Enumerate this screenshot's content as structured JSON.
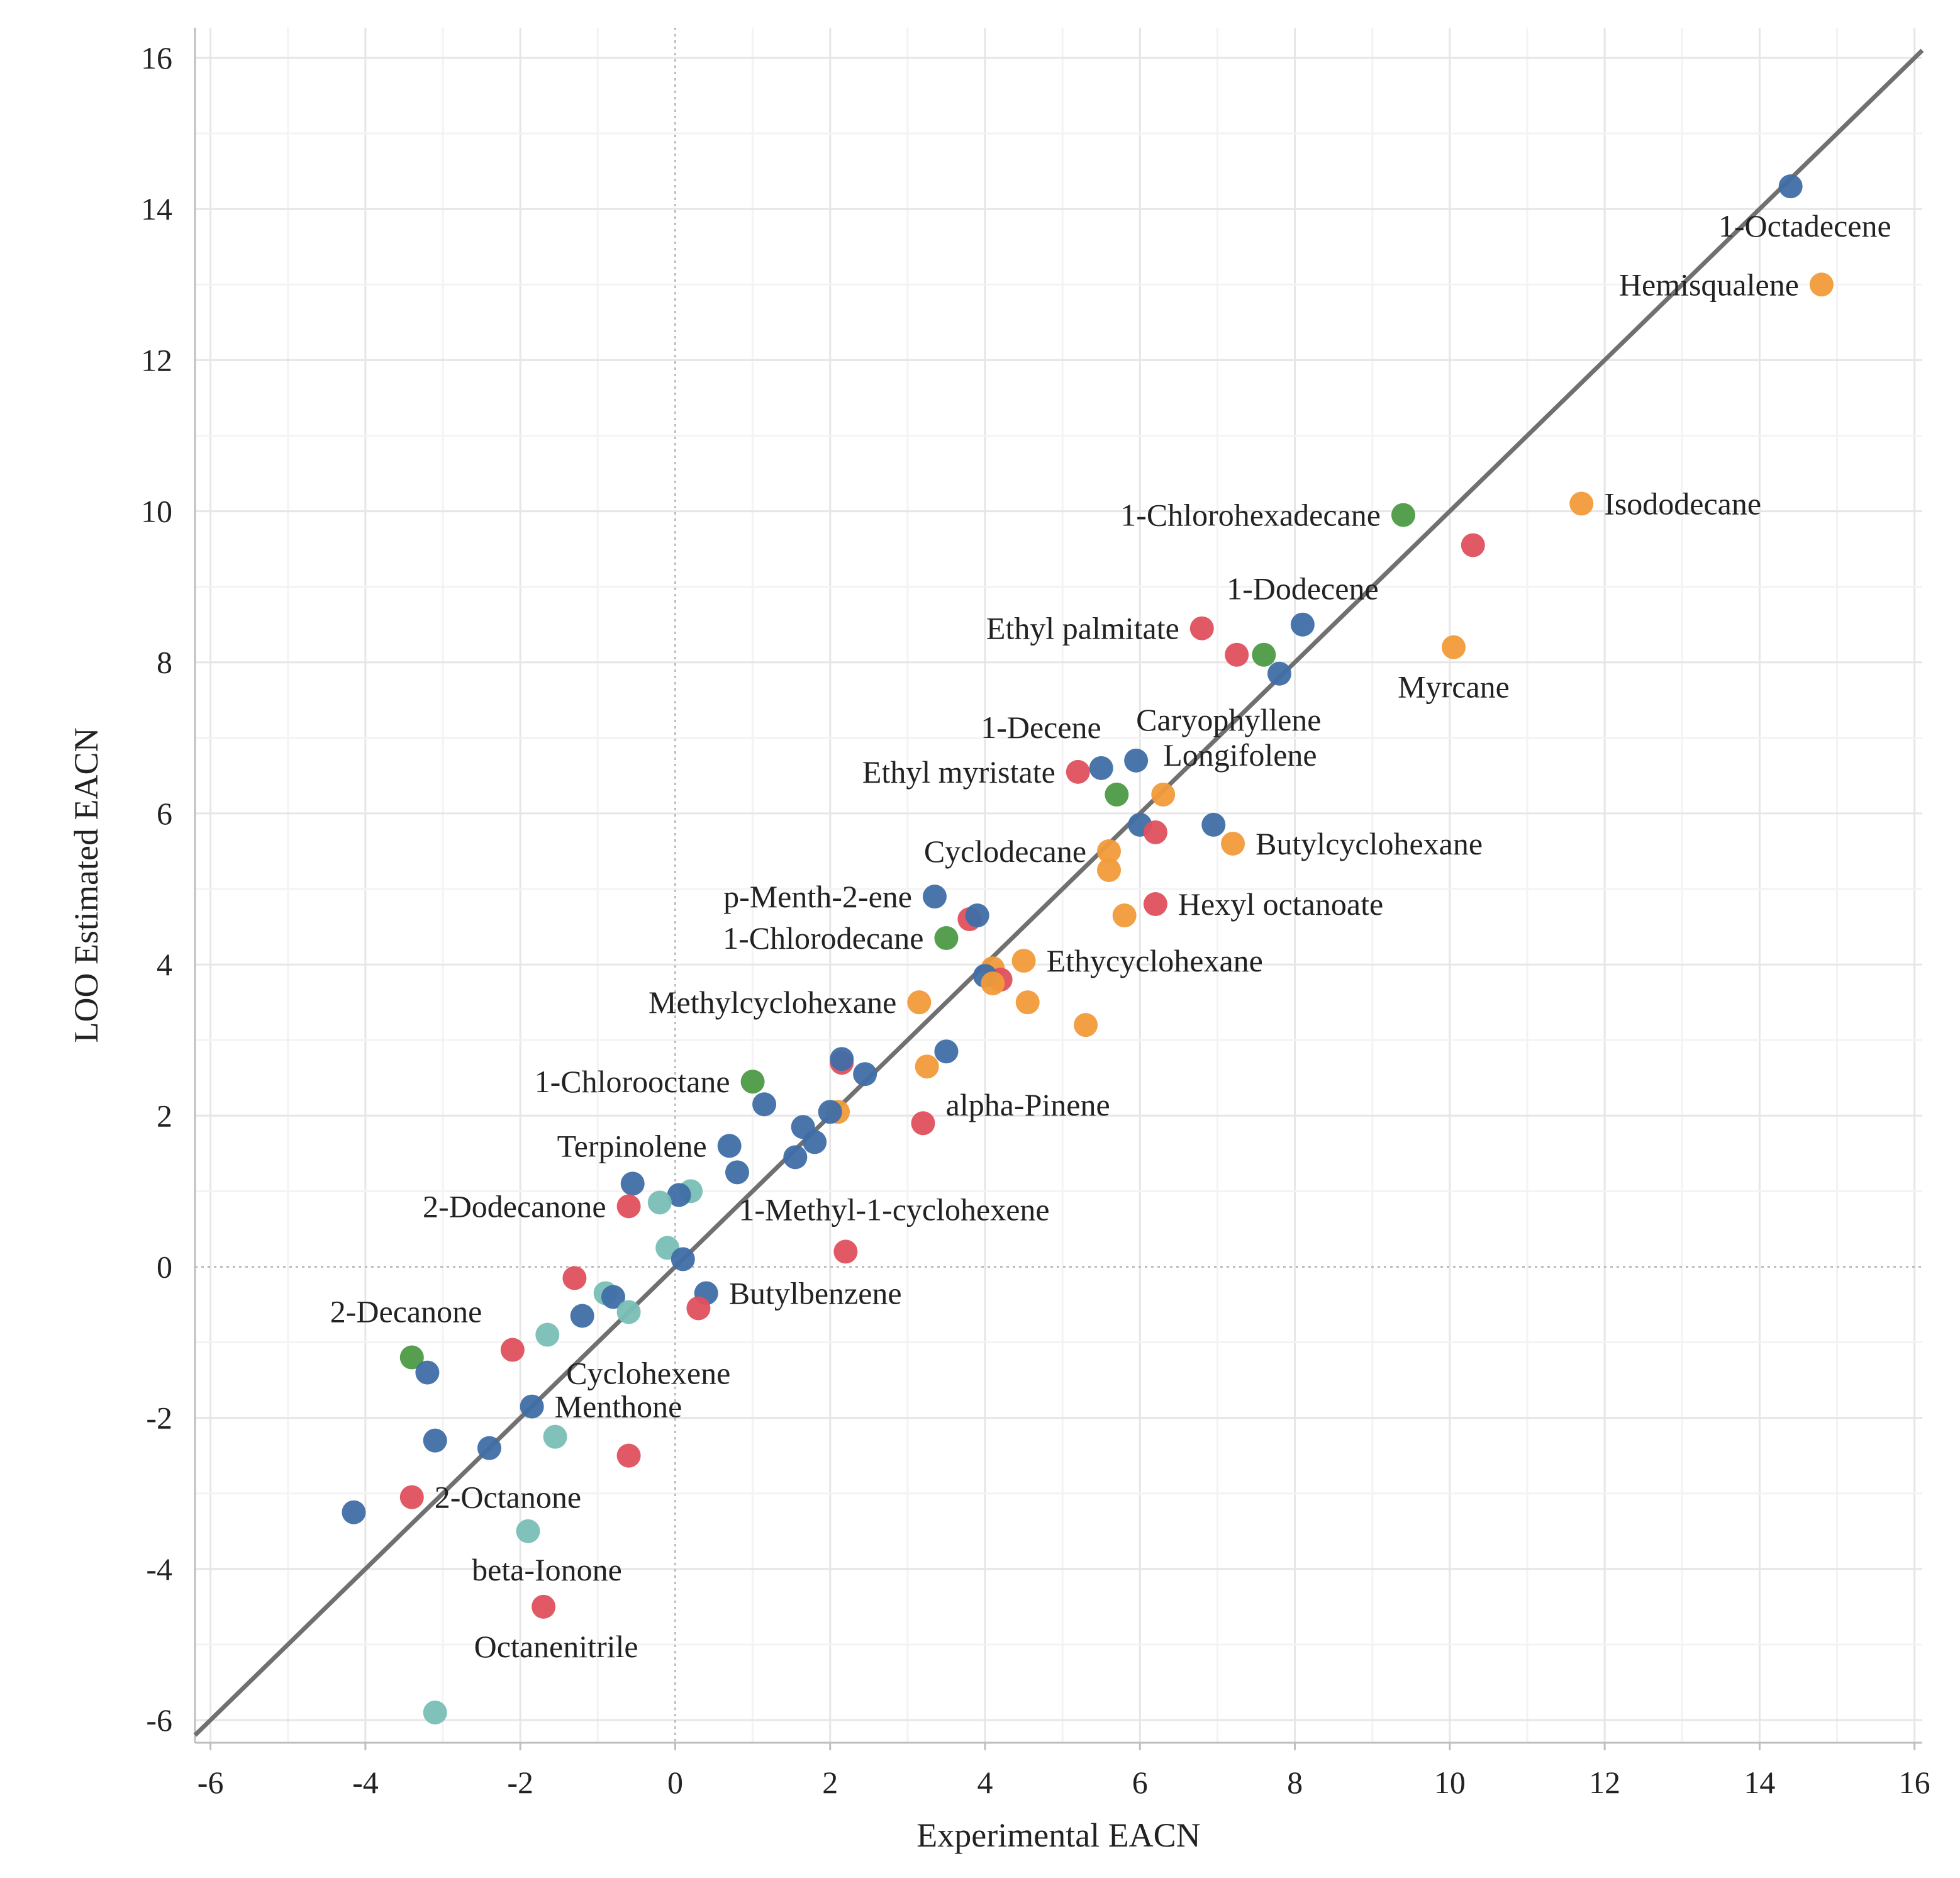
{
  "chart_data": {
    "type": "scatter",
    "title": "",
    "xlabel": "Experimental EACN",
    "ylabel": "LOO Estimated EACN",
    "xlim": [
      -6.2,
      16.1
    ],
    "ylim": [
      -6.3,
      16.4
    ],
    "xticks": [
      -6,
      -4,
      -2,
      0,
      2,
      4,
      6,
      8,
      10,
      12,
      14,
      16
    ],
    "yticks": [
      -6,
      -4,
      -2,
      0,
      2,
      4,
      6,
      8,
      10,
      12,
      14,
      16
    ],
    "grid": true,
    "reference_line": {
      "name": "y = x",
      "color": "#707070",
      "from": [
        -6.2,
        -6.2
      ],
      "to": [
        16.1,
        16.1
      ]
    },
    "zero_lines": true,
    "colors": {
      "blue": "#3f6ea6",
      "red": "#e0505e",
      "orange": "#f29a3a",
      "green": "#4d9a46",
      "teal": "#79bfb5"
    },
    "points": [
      {
        "x": 14.4,
        "y": 14.3,
        "c": "blue",
        "label": "1-Octadecene",
        "anchor": "below-left"
      },
      {
        "x": 14.8,
        "y": 13.0,
        "c": "orange",
        "label": "Hemisqualene",
        "anchor": "left"
      },
      {
        "x": 11.7,
        "y": 10.1,
        "c": "orange",
        "label": "Isododecane",
        "anchor": "right"
      },
      {
        "x": 9.4,
        "y": 9.95,
        "c": "green",
        "label": "1-Chlorohexadecane",
        "anchor": "left"
      },
      {
        "x": 10.3,
        "y": 9.55,
        "c": "red"
      },
      {
        "x": 8.1,
        "y": 8.5,
        "c": "blue",
        "label": "1-Dodecene",
        "anchor": "above"
      },
      {
        "x": 6.8,
        "y": 8.45,
        "c": "red",
        "label": "Ethyl palmitate",
        "anchor": "left"
      },
      {
        "x": 10.05,
        "y": 8.2,
        "c": "orange",
        "label": "Myrcane",
        "anchor": "below"
      },
      {
        "x": 7.25,
        "y": 8.1,
        "c": "red"
      },
      {
        "x": 7.6,
        "y": 8.1,
        "c": "green"
      },
      {
        "x": 7.8,
        "y": 7.85,
        "c": "blue"
      },
      {
        "x": 5.95,
        "y": 6.7,
        "c": "blue",
        "label": "Caryophyllene",
        "anchor": "above-right"
      },
      {
        "x": 5.5,
        "y": 6.6,
        "c": "blue",
        "label": "1-Decene",
        "anchor": "above-left"
      },
      {
        "x": 5.2,
        "y": 6.55,
        "c": "red",
        "label": "Ethyl myristate",
        "anchor": "left"
      },
      {
        "x": 5.7,
        "y": 6.25,
        "c": "green"
      },
      {
        "x": 6.3,
        "y": 6.25,
        "c": "orange",
        "label": "Longifolene",
        "anchor": "above-right"
      },
      {
        "x": 6.0,
        "y": 5.85,
        "c": "blue"
      },
      {
        "x": 6.95,
        "y": 5.85,
        "c": "blue"
      },
      {
        "x": 6.2,
        "y": 5.75,
        "c": "red"
      },
      {
        "x": 7.2,
        "y": 5.6,
        "c": "orange",
        "label": "Butylcyclohexane",
        "anchor": "right"
      },
      {
        "x": 5.6,
        "y": 5.5,
        "c": "orange",
        "label": "Cyclodecane",
        "anchor": "left"
      },
      {
        "x": 5.6,
        "y": 5.25,
        "c": "orange"
      },
      {
        "x": 3.35,
        "y": 4.9,
        "c": "blue",
        "label": "p-Menth-2-ene",
        "anchor": "left"
      },
      {
        "x": 6.2,
        "y": 4.8,
        "c": "red",
        "label": "Hexyl octanoate",
        "anchor": "right"
      },
      {
        "x": 5.8,
        "y": 4.65,
        "c": "orange"
      },
      {
        "x": 3.8,
        "y": 4.6,
        "c": "red"
      },
      {
        "x": 3.9,
        "y": 4.65,
        "c": "blue"
      },
      {
        "x": 3.5,
        "y": 4.35,
        "c": "green",
        "label": "1-Chlorodecane",
        "anchor": "left"
      },
      {
        "x": 4.5,
        "y": 4.05,
        "c": "orange",
        "label": "Ethycyclohexane",
        "anchor": "right"
      },
      {
        "x": 4.1,
        "y": 3.95,
        "c": "orange"
      },
      {
        "x": 4.2,
        "y": 3.8,
        "c": "red"
      },
      {
        "x": 4.0,
        "y": 3.85,
        "c": "blue"
      },
      {
        "x": 4.1,
        "y": 3.75,
        "c": "orange"
      },
      {
        "x": 4.55,
        "y": 3.5,
        "c": "orange"
      },
      {
        "x": 3.15,
        "y": 3.5,
        "c": "orange",
        "label": "Methylcyclohexane",
        "anchor": "left"
      },
      {
        "x": 5.3,
        "y": 3.2,
        "c": "orange"
      },
      {
        "x": 3.5,
        "y": 2.85,
        "c": "blue"
      },
      {
        "x": 2.15,
        "y": 2.7,
        "c": "red"
      },
      {
        "x": 2.15,
        "y": 2.75,
        "c": "blue"
      },
      {
        "x": 2.45,
        "y": 2.55,
        "c": "blue"
      },
      {
        "x": 3.25,
        "y": 2.65,
        "c": "orange",
        "label": "alpha-Pinene",
        "anchor": "below-right"
      },
      {
        "x": 1.0,
        "y": 2.45,
        "c": "green",
        "label": "1-Chlorooctane",
        "anchor": "left"
      },
      {
        "x": 1.15,
        "y": 2.15,
        "c": "blue"
      },
      {
        "x": 2.1,
        "y": 2.05,
        "c": "orange"
      },
      {
        "x": 2.0,
        "y": 2.05,
        "c": "blue"
      },
      {
        "x": 1.65,
        "y": 1.85,
        "c": "blue"
      },
      {
        "x": 3.2,
        "y": 1.9,
        "c": "red"
      },
      {
        "x": 1.8,
        "y": 1.65,
        "c": "blue"
      },
      {
        "x": 0.7,
        "y": 1.6,
        "c": "blue",
        "label": "Terpinolene",
        "anchor": "left"
      },
      {
        "x": 1.55,
        "y": 1.45,
        "c": "blue"
      },
      {
        "x": 0.8,
        "y": 1.25,
        "c": "blue"
      },
      {
        "x": -0.55,
        "y": 1.1,
        "c": "blue"
      },
      {
        "x": 0.2,
        "y": 1.0,
        "c": "teal"
      },
      {
        "x": 0.05,
        "y": 0.95,
        "c": "blue"
      },
      {
        "x": -0.2,
        "y": 0.85,
        "c": "teal"
      },
      {
        "x": -0.6,
        "y": 0.8,
        "c": "red",
        "label": "2-Dodecanone",
        "anchor": "left"
      },
      {
        "x": 2.2,
        "y": 0.2,
        "c": "red",
        "label": "1-Methyl-1-cyclohexene",
        "anchor": "above-right"
      },
      {
        "x": -0.1,
        "y": 0.25,
        "c": "teal"
      },
      {
        "x": 0.1,
        "y": 0.1,
        "c": "blue"
      },
      {
        "x": -1.3,
        "y": -0.15,
        "c": "red"
      },
      {
        "x": -0.9,
        "y": -0.35,
        "c": "teal"
      },
      {
        "x": -0.8,
        "y": -0.4,
        "c": "blue"
      },
      {
        "x": 0.4,
        "y": -0.35,
        "c": "blue",
        "label": "Butylbenzene",
        "anchor": "right"
      },
      {
        "x": 0.3,
        "y": -0.55,
        "c": "red"
      },
      {
        "x": -0.6,
        "y": -0.6,
        "c": "teal"
      },
      {
        "x": -1.2,
        "y": -0.65,
        "c": "blue"
      },
      {
        "x": -1.65,
        "y": -0.9,
        "c": "teal",
        "label": "Cyclohexene",
        "anchor": "below-right"
      },
      {
        "x": -2.1,
        "y": -1.1,
        "c": "red"
      },
      {
        "x": -3.4,
        "y": -1.2,
        "c": "green",
        "label": "2-Decanone",
        "anchor": "above-right"
      },
      {
        "x": -3.2,
        "y": -1.4,
        "c": "blue"
      },
      {
        "x": -1.85,
        "y": -1.85,
        "c": "blue",
        "label": "Menthone",
        "anchor": "right"
      },
      {
        "x": -1.55,
        "y": -2.25,
        "c": "teal"
      },
      {
        "x": -3.1,
        "y": -2.3,
        "c": "blue"
      },
      {
        "x": -2.4,
        "y": -2.4,
        "c": "blue"
      },
      {
        "x": -0.6,
        "y": -2.5,
        "c": "red"
      },
      {
        "x": -3.4,
        "y": -3.05,
        "c": "red",
        "label": "2-Octanone",
        "anchor": "right"
      },
      {
        "x": -4.15,
        "y": -3.25,
        "c": "blue"
      },
      {
        "x": -1.9,
        "y": -3.5,
        "c": "teal",
        "label": "beta-Ionone",
        "anchor": "below"
      },
      {
        "x": -1.7,
        "y": -4.5,
        "c": "red",
        "label": "Octanenitrile",
        "anchor": "below-right"
      },
      {
        "x": -3.1,
        "y": -5.9,
        "c": "teal"
      }
    ]
  }
}
